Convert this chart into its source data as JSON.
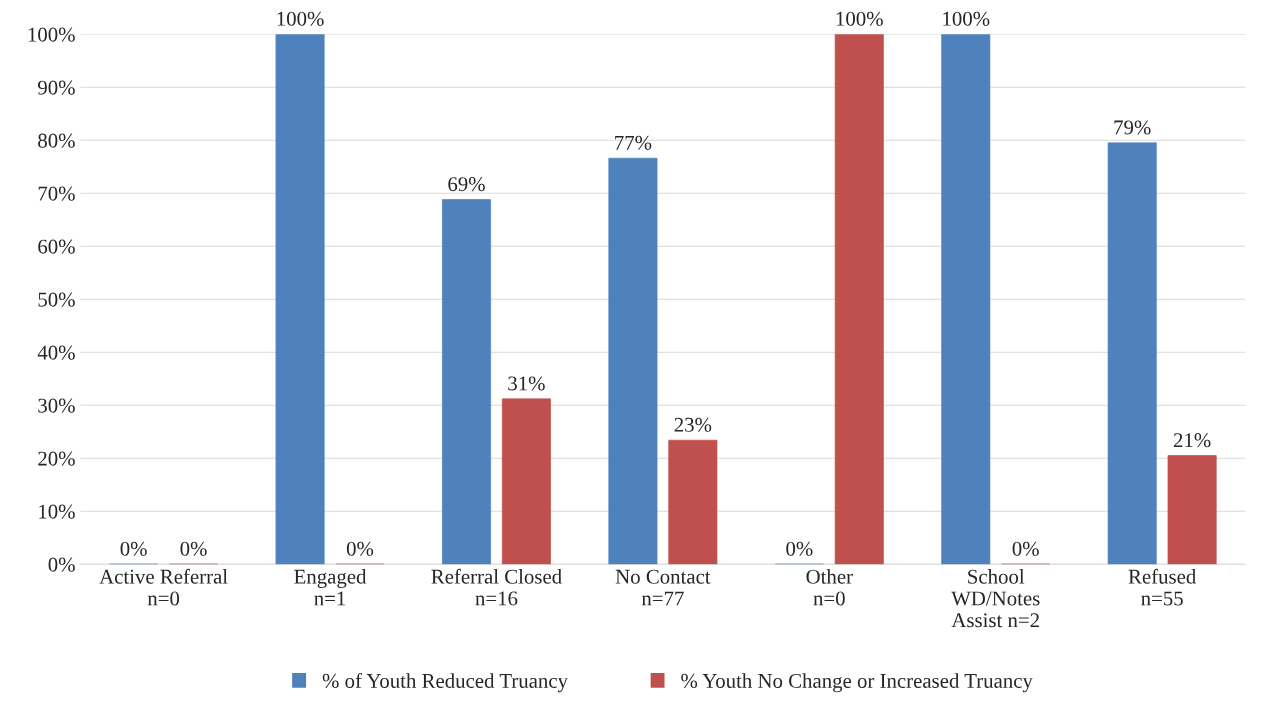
{
  "chart_data": {
    "type": "bar",
    "categories": [
      "Active Referral\nn=0",
      "Engaged\nn=1",
      "Referral Closed\nn=16",
      "No Contact\nn=77",
      "Other\nn=0",
      "School\nWD/Notes\nAssist n=2",
      "Refused\nn=55"
    ],
    "series": [
      {
        "name": "% of Youth Reduced Truancy",
        "color": "#4f81bd",
        "values": [
          0,
          100,
          68.8,
          76.6,
          0,
          100,
          79.5
        ],
        "value_labels": [
          "0%",
          "100%",
          "69%",
          "77%",
          "0%",
          "100%",
          "79%"
        ]
      },
      {
        "name": "% Youth No Change or Increased Truancy",
        "color": "#c0504d",
        "values": [
          0,
          0,
          31.2,
          23.4,
          100,
          0,
          20.5
        ],
        "value_labels": [
          "0%",
          "0%",
          "31%",
          "23%",
          "100%",
          "0%",
          "21%"
        ]
      }
    ],
    "ylim": [
      0,
      100
    ],
    "yticks": [
      {
        "value": 0,
        "label": "0%"
      },
      {
        "value": 10,
        "label": "10%"
      },
      {
        "value": 20,
        "label": "20%"
      },
      {
        "value": 30,
        "label": "30%"
      },
      {
        "value": 40,
        "label": "40%"
      },
      {
        "value": 50,
        "label": "50%"
      },
      {
        "value": 60,
        "label": "60%"
      },
      {
        "value": 70,
        "label": "70%"
      },
      {
        "value": 80,
        "label": "80%"
      },
      {
        "value": 90,
        "label": "90%"
      },
      {
        "value": 100,
        "label": "100%"
      }
    ],
    "grid": "y",
    "legend": "bottom"
  }
}
